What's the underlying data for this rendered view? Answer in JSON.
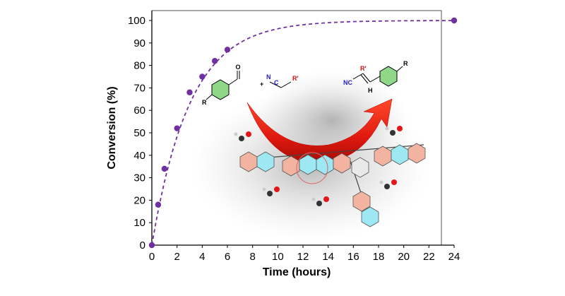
{
  "chart_data": {
    "type": "scatter",
    "title": "",
    "xlabel": "Time (hours)",
    "ylabel": "Conversion (%)",
    "xlim": [
      0,
      24
    ],
    "ylim": [
      0,
      100
    ],
    "xticks": [
      "0",
      "2",
      "4",
      "6",
      "8",
      "10",
      "12",
      "14",
      "16",
      "18",
      "20",
      "22",
      "24"
    ],
    "yticks": [
      "0",
      "10",
      "20",
      "30",
      "40",
      "50",
      "60",
      "70",
      "80",
      "90",
      "100"
    ],
    "grid": false,
    "legend": "none",
    "series": [
      {
        "x": [
          0,
          0.5,
          1,
          2,
          3,
          4,
          5,
          6,
          24
        ],
        "y": [
          0,
          18,
          34,
          52,
          68,
          75,
          82,
          87,
          100
        ],
        "marker": "circle",
        "color": "#7030a0",
        "fit_line": "dashed"
      }
    ]
  },
  "inset": {
    "reactant_labels": [
      "R",
      "+",
      "N",
      "C",
      "R'"
    ],
    "product_labels": [
      "R'",
      "R",
      "NC",
      "H"
    ],
    "arrow_color": "#e0190f"
  }
}
